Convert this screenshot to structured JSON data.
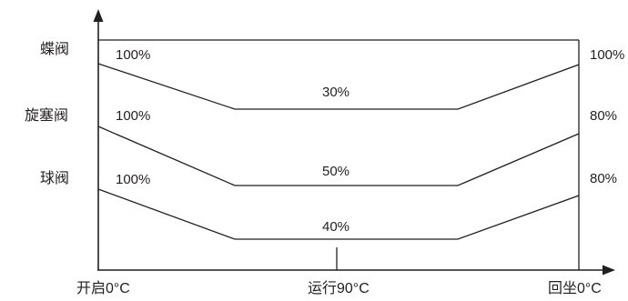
{
  "valves": [
    {
      "name": "蝶阀",
      "start": "100%",
      "middle": "30%",
      "end": "100%"
    },
    {
      "name": "旋塞阀",
      "start": "100%",
      "middle": "50%",
      "end": "80%"
    },
    {
      "name": "球阀",
      "start": "100%",
      "middle": "40%",
      "end": "80%"
    }
  ],
  "x_axis": {
    "labels": [
      "开启0°C",
      "运行90°C",
      "回坐0°C"
    ]
  },
  "colors": {
    "line": "#231f20",
    "background": "#ffffff"
  }
}
